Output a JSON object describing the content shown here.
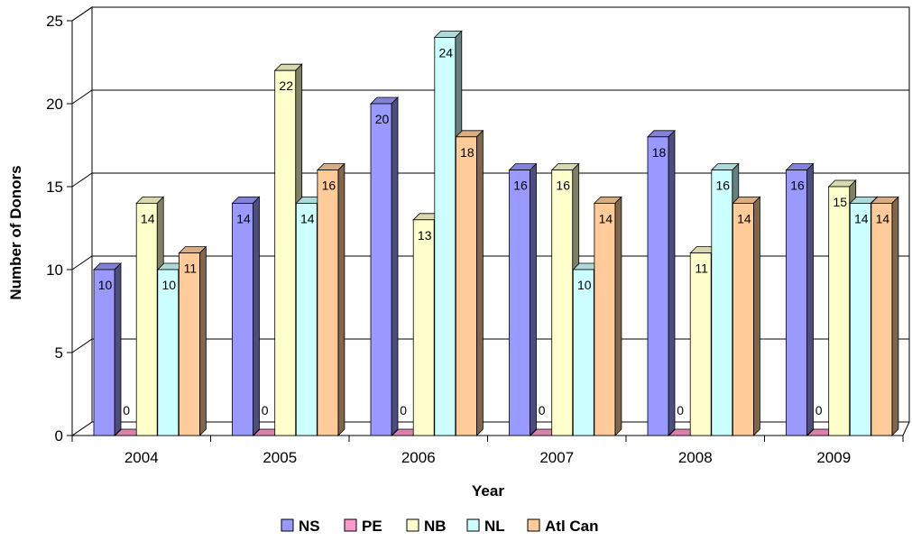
{
  "chart_data": {
    "type": "bar",
    "categories": [
      "2004",
      "2005",
      "2006",
      "2007",
      "2008",
      "2009"
    ],
    "series": [
      {
        "name": "NS",
        "values": [
          10,
          14,
          20,
          16,
          18,
          16
        ],
        "color": "#9999FF"
      },
      {
        "name": "PE",
        "values": [
          0,
          0,
          0,
          0,
          0,
          0
        ],
        "color": "#FF99CC"
      },
      {
        "name": "NB",
        "values": [
          14,
          22,
          13,
          16,
          11,
          15
        ],
        "color": "#FFFFCC"
      },
      {
        "name": "NL",
        "values": [
          10,
          14,
          24,
          10,
          16,
          14
        ],
        "color": "#CCFFFF"
      },
      {
        "name": "Atl Can",
        "values": [
          11,
          16,
          18,
          14,
          14,
          14
        ],
        "color": "#FFCC99"
      }
    ],
    "xlabel": "Year",
    "ylabel": "Number of Donors",
    "ylim": [
      0,
      25
    ],
    "yticks": [
      "0",
      "5",
      "10",
      "15",
      "20",
      "25"
    ],
    "grid": true,
    "legend_position": "bottom"
  }
}
